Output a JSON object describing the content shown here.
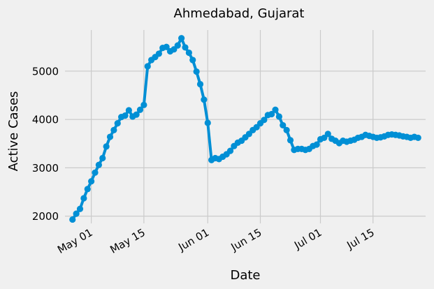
{
  "chart_data": {
    "type": "line",
    "title": "Ahmedabad, Gujarat",
    "xlabel": "Date",
    "ylabel": "Active Cases",
    "ylim": [
      1850,
      5850
    ],
    "xlim": [
      "2020-04-24",
      "2020-07-29"
    ],
    "grid": true,
    "x_ticks": [
      {
        "date": "2020-05-01",
        "label": "May 01"
      },
      {
        "date": "2020-05-15",
        "label": "May 15"
      },
      {
        "date": "2020-06-01",
        "label": "Jun 01"
      },
      {
        "date": "2020-06-15",
        "label": "Jun 15"
      },
      {
        "date": "2020-07-01",
        "label": "Jul 01"
      },
      {
        "date": "2020-07-15",
        "label": "Jul 15"
      }
    ],
    "y_ticks": [
      2000,
      3000,
      4000,
      5000
    ],
    "series": [
      {
        "color": "#008fd5",
        "x": [
          "2020-04-26",
          "2020-04-27",
          "2020-04-28",
          "2020-04-29",
          "2020-04-30",
          "2020-05-01",
          "2020-05-02",
          "2020-05-03",
          "2020-05-04",
          "2020-05-05",
          "2020-05-06",
          "2020-05-07",
          "2020-05-08",
          "2020-05-09",
          "2020-05-10",
          "2020-05-11",
          "2020-05-12",
          "2020-05-13",
          "2020-05-14",
          "2020-05-15",
          "2020-05-16",
          "2020-05-17",
          "2020-05-18",
          "2020-05-19",
          "2020-05-20",
          "2020-05-21",
          "2020-05-22",
          "2020-05-23",
          "2020-05-24",
          "2020-05-25",
          "2020-05-26",
          "2020-05-27",
          "2020-05-28",
          "2020-05-29",
          "2020-05-30",
          "2020-05-31",
          "2020-06-01",
          "2020-06-02",
          "2020-06-03",
          "2020-06-04",
          "2020-06-05",
          "2020-06-06",
          "2020-06-07",
          "2020-06-08",
          "2020-06-09",
          "2020-06-10",
          "2020-06-11",
          "2020-06-12",
          "2020-06-13",
          "2020-06-14",
          "2020-06-15",
          "2020-06-16",
          "2020-06-17",
          "2020-06-18",
          "2020-06-19",
          "2020-06-20",
          "2020-06-21",
          "2020-06-22",
          "2020-06-23",
          "2020-06-24",
          "2020-06-25",
          "2020-06-26",
          "2020-06-27",
          "2020-06-28",
          "2020-06-29",
          "2020-06-30",
          "2020-07-01",
          "2020-07-02",
          "2020-07-03",
          "2020-07-04",
          "2020-07-05",
          "2020-07-06",
          "2020-07-07",
          "2020-07-08",
          "2020-07-09",
          "2020-07-10",
          "2020-07-11",
          "2020-07-12",
          "2020-07-13",
          "2020-07-14",
          "2020-07-15",
          "2020-07-16",
          "2020-07-17",
          "2020-07-18",
          "2020-07-19",
          "2020-07-20",
          "2020-07-21",
          "2020-07-22",
          "2020-07-23",
          "2020-07-24",
          "2020-07-25",
          "2020-07-26",
          "2020-07-27"
        ],
        "y": [
          1930,
          2050,
          2150,
          2370,
          2560,
          2720,
          2900,
          3060,
          3200,
          3440,
          3640,
          3780,
          3920,
          4050,
          4080,
          4190,
          4060,
          4100,
          4200,
          4300,
          5100,
          5230,
          5290,
          5360,
          5480,
          5500,
          5410,
          5450,
          5530,
          5680,
          5490,
          5380,
          5230,
          4990,
          4730,
          4410,
          3930,
          3160,
          3200,
          3180,
          3230,
          3280,
          3350,
          3450,
          3520,
          3560,
          3630,
          3700,
          3780,
          3840,
          3920,
          3990,
          4090,
          4110,
          4200,
          4060,
          3880,
          3780,
          3570,
          3370,
          3390,
          3390,
          3370,
          3390,
          3450,
          3480,
          3590,
          3620,
          3700,
          3600,
          3560,
          3510,
          3560,
          3540,
          3560,
          3580,
          3620,
          3640,
          3680,
          3660,
          3640,
          3620,
          3630,
          3650,
          3680,
          3690,
          3680,
          3670,
          3650,
          3640,
          3620,
          3640,
          3620
        ]
      }
    ]
  }
}
